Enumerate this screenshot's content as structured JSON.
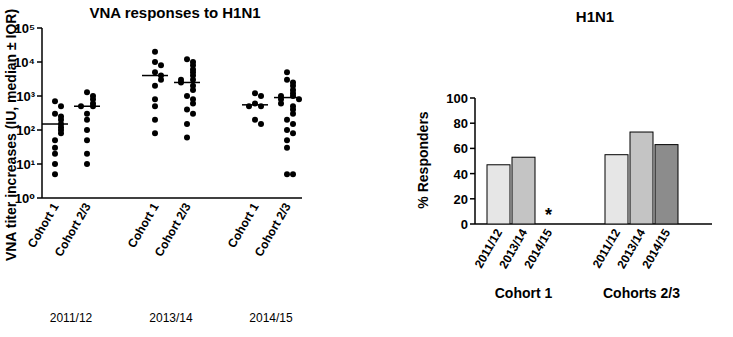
{
  "chart_data": [
    {
      "type": "scatter",
      "title": "VNA responses to H1N1",
      "y_label": "VNA titer increases (IU, median ± IQR)",
      "log": "y",
      "ylim": [
        1,
        100000
      ],
      "yticks": [
        {
          "value": 1,
          "label": "10⁰"
        },
        {
          "value": 10,
          "label": "10¹"
        },
        {
          "value": 100,
          "label": "10²"
        },
        {
          "value": 1000,
          "label": "10³"
        },
        {
          "value": 10000,
          "label": "10⁴"
        },
        {
          "value": 100000,
          "label": "10⁵"
        }
      ],
      "color": "#000000",
      "marker": "circle",
      "groups": [
        {
          "label": "2011/12",
          "categories": [
            "Cohort 1",
            "Cohort 2/3"
          ],
          "points": [
            [
              700,
              500,
              300,
              250,
              200,
              150,
              120,
              100,
              80,
              50,
              30,
              20,
              10,
              5
            ],
            [
              1300,
              1000,
              800,
              600,
              500,
              500,
              300,
              200,
              100,
              50,
              20,
              10
            ]
          ],
          "medians": [
            150,
            500
          ]
        },
        {
          "label": "2013/14",
          "categories": [
            "Cohort 1",
            "Cohort 2/3"
          ],
          "points": [
            [
              20000,
              10000,
              8000,
              5000,
              4000,
              3000,
              2000,
              800,
              500,
              200,
              80
            ],
            [
              12000,
              10000,
              8000,
              6000,
              5000,
              4000,
              3000,
              3000,
              2500,
              2000,
              1500,
              1000,
              800,
              600,
              400,
              300,
              150,
              60
            ]
          ],
          "medians": [
            4000,
            2500
          ]
        },
        {
          "label": "2014/15",
          "categories": [
            "Cohort 1",
            "Cohort 2/3"
          ],
          "points": [
            [
              1200,
              1000,
              600,
              500,
              500,
              200,
              150
            ],
            [
              5000,
              3000,
              2500,
              2000,
              1500,
              1200,
              1000,
              1000,
              800,
              800,
              600,
              500,
              400,
              300,
              200,
              150,
              100,
              80,
              50,
              30,
              5,
              5
            ]
          ],
          "medians": [
            550,
            900
          ]
        }
      ]
    },
    {
      "type": "bar",
      "title": "H1N1",
      "y_label": "% Responders",
      "ylim": [
        0,
        100
      ],
      "yticks": [
        0,
        20,
        40,
        60,
        80,
        100
      ],
      "groups": [
        {
          "label": "Cohort 1",
          "categories": [
            "2011/12",
            "2013/14",
            "2014/15"
          ],
          "values": [
            47,
            53,
            null
          ],
          "value_labels": [
            null,
            null,
            "*"
          ],
          "colors": [
            "#e6e6e6",
            "#c4c4c4",
            "#8c8c8c"
          ]
        },
        {
          "label": "Cohorts 2/3",
          "categories": [
            "2011/12",
            "2013/14",
            "2014/15"
          ],
          "values": [
            55,
            73,
            63
          ],
          "value_labels": [
            null,
            null,
            null
          ],
          "colors": [
            "#e6e6e6",
            "#c4c4c4",
            "#8c8c8c"
          ]
        }
      ]
    }
  ]
}
